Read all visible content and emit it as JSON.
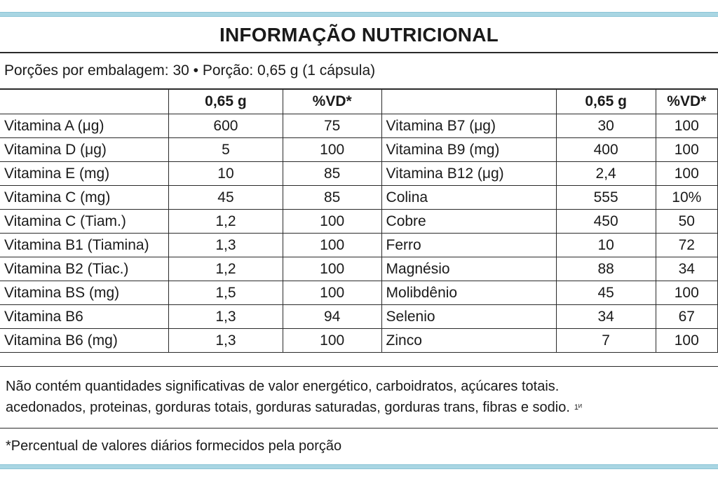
{
  "title": "INFORMAÇÃO NUTRICIONAL",
  "serving": "Porções por embalagem: 30 • Porção: 0,65 g (1 cápsula)",
  "table": {
    "header": [
      "",
      "0,65 g",
      "%VD*",
      "",
      "0,65 g",
      "%VD*"
    ],
    "rows": [
      [
        "Vitamina A (μg)",
        "600",
        "75",
        "Vitamina B7 (μg)",
        "30",
        "100"
      ],
      [
        "Vitamina D (μg)",
        "5",
        "100",
        "Vitamina B9 (mg)",
        "400",
        "100"
      ],
      [
        "Vitamina E (mg)",
        "10",
        "85",
        "Vitamina B12 (μg)",
        "2,4",
        "100"
      ],
      [
        "Vitamina C (mg)",
        "45",
        "85",
        "Colina",
        "555",
        "10%"
      ],
      [
        "Vitamina C (Tiam.)",
        "1,2",
        "100",
        "Cobre",
        "450",
        "50"
      ],
      [
        "Vitamina B1 (Tiamina)",
        "1,3",
        "100",
        "Ferro",
        "10",
        "72"
      ],
      [
        "Vitamina B2 (Tiac.)",
        "1,2",
        "100",
        "Magnésio",
        "88",
        "34"
      ],
      [
        "Vitamina BS (mg)",
        "1,5",
        "100",
        "Molibdênio",
        "45",
        "100"
      ],
      [
        "Vitamina B6",
        "1,3",
        "94",
        "Selenio",
        "34",
        "67"
      ],
      [
        "Vitamina B6 (mg)",
        "1,3",
        "100",
        "Zinco",
        "7",
        "100"
      ]
    ]
  },
  "note": {
    "line1": "Não contém quantidades significativas de valor energético, carboidratos, açúcares totais.",
    "line2": "acedonados, proteinas, gorduras totais, gorduras saturadas, gorduras trans, fibras e sodio.",
    "mark": "1ᴻ"
  },
  "footnote": "*Percentual de valores diários formecidos pela porção",
  "colors": {
    "accent_band": "#a9d6e3",
    "rule": "#2a2a2a",
    "text": "#1a1a1a"
  }
}
